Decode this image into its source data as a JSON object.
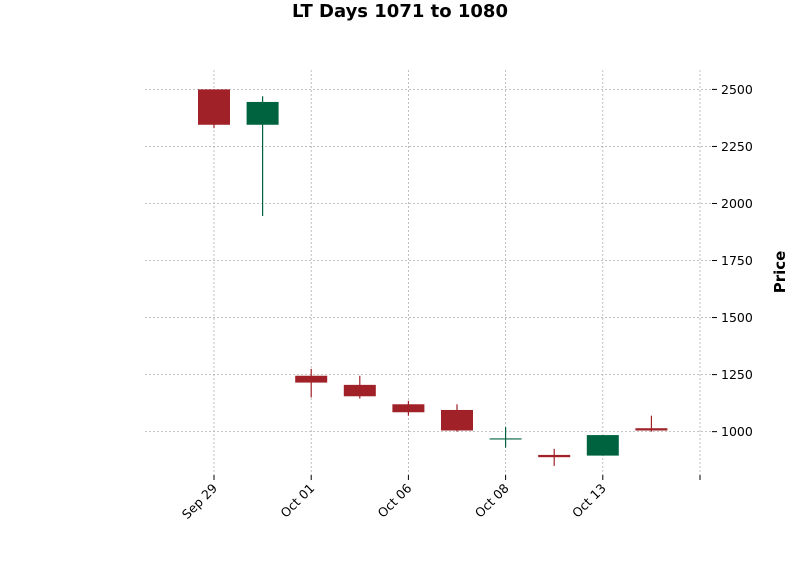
{
  "chart_data": {
    "type": "candlestick",
    "title": "LT Days 1071 to 1080",
    "ylabel": "Price",
    "xlabel": "",
    "ylim": [
      810,
      2585
    ],
    "y_ticks": [
      1000,
      1250,
      1500,
      1750,
      2000,
      2250,
      2500
    ],
    "x_ticks": [
      {
        "index": 0,
        "label": "Sep 29"
      },
      {
        "index": 2,
        "label": "Oct 01"
      },
      {
        "index": 4,
        "label": "Oct 06"
      },
      {
        "index": 6,
        "label": "Oct 08"
      },
      {
        "index": 8,
        "label": "Oct 13"
      },
      {
        "index": 10,
        "label": ""
      }
    ],
    "grid": true,
    "colors": {
      "up": "#006340",
      "down": "#a02128",
      "grid": "#b0b0b0"
    },
    "candles": [
      {
        "open": 2500,
        "high": 2500,
        "low": 2330,
        "close": 2345
      },
      {
        "open": 2345,
        "high": 2470,
        "low": 1945,
        "close": 2445
      },
      {
        "open": 1245,
        "high": 1275,
        "low": 1150,
        "close": 1215
      },
      {
        "open": 1205,
        "high": 1245,
        "low": 1145,
        "close": 1155
      },
      {
        "open": 1120,
        "high": 1135,
        "low": 1070,
        "close": 1085
      },
      {
        "open": 1095,
        "high": 1120,
        "low": 1000,
        "close": 1005
      },
      {
        "open": 968,
        "high": 1020,
        "low": 930,
        "close": 968
      },
      {
        "open": 898,
        "high": 925,
        "low": 850,
        "close": 888
      },
      {
        "open": 895,
        "high": 985,
        "low": 895,
        "close": 985
      },
      {
        "open": 1015,
        "high": 1070,
        "low": 1000,
        "close": 1005
      }
    ]
  }
}
